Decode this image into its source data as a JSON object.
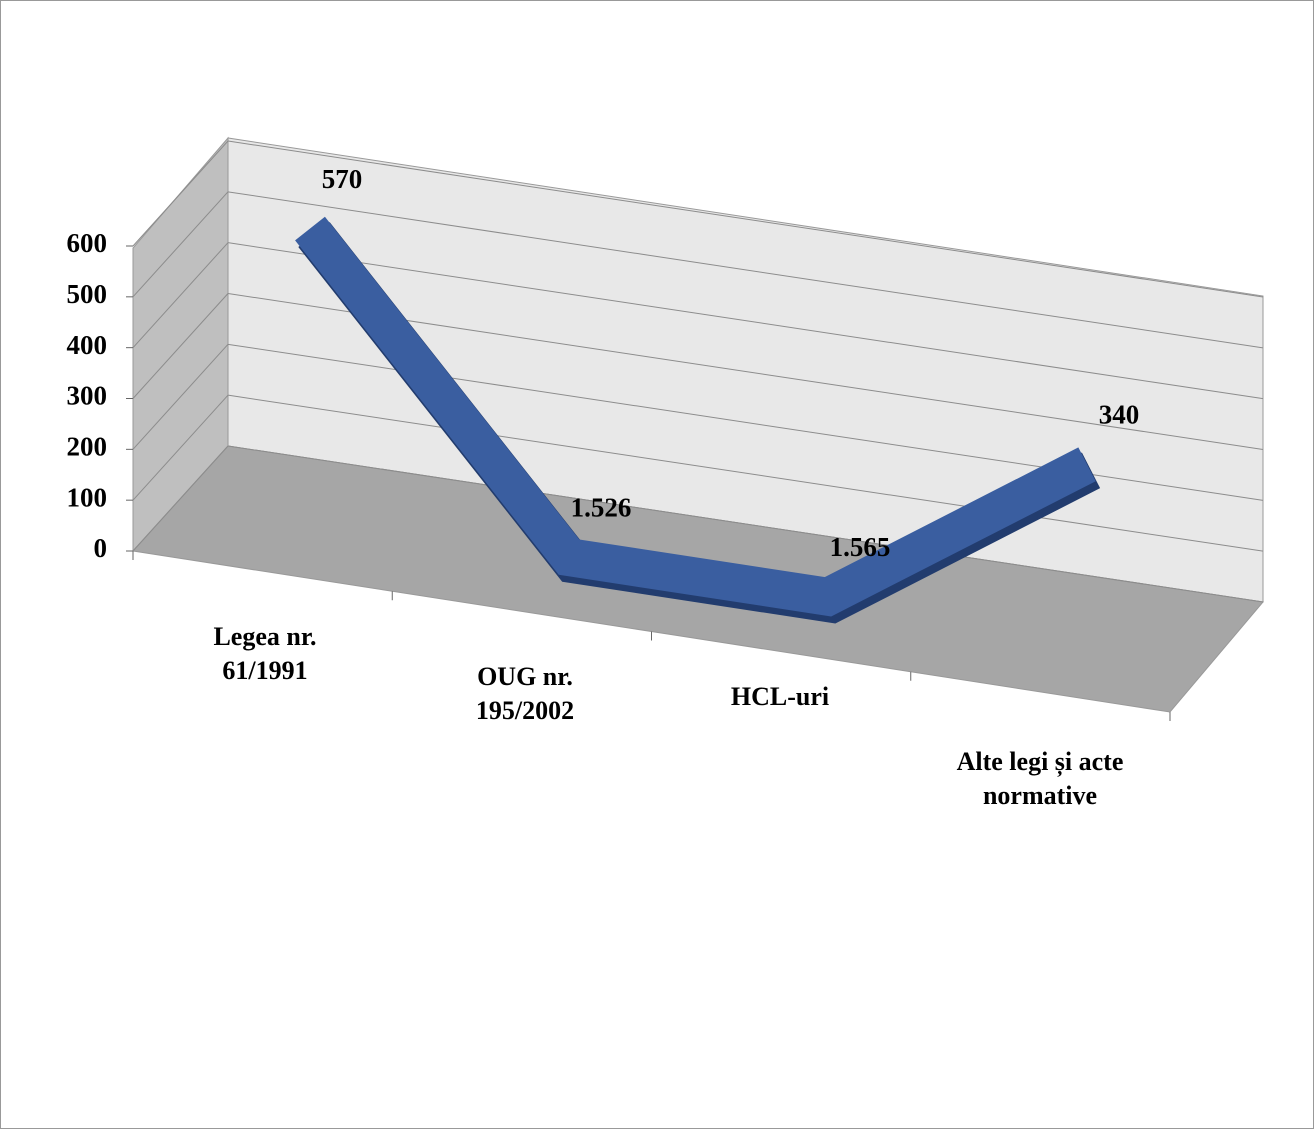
{
  "chart_data": {
    "type": "line",
    "categories": [
      "Legea nr. 61/1991",
      "OUG nr. 195/2002",
      "HCL-uri",
      "Alte legi și acte normative"
    ],
    "values": [
      570,
      1.526,
      1.565,
      340
    ],
    "color": "#3a5ea0",
    "ylim": [
      0,
      600
    ],
    "yticks": [
      0,
      100,
      200,
      300,
      400,
      500,
      600
    ],
    "grid": true
  }
}
